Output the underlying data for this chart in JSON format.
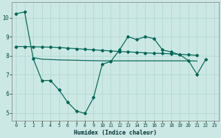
{
  "xlabel": "Humidex (Indice chaleur)",
  "background_color": "#cce8e4",
  "grid_color": "#b0d8d0",
  "line_color": "#006655",
  "x": [
    0,
    1,
    2,
    3,
    4,
    5,
    6,
    7,
    8,
    9,
    10,
    11,
    12,
    13,
    14,
    15,
    16,
    17,
    18,
    19,
    20,
    21,
    22,
    23
  ],
  "line1": [
    10.2,
    10.3,
    7.85,
    6.7,
    6.7,
    6.2,
    5.55,
    5.1,
    4.97,
    5.8,
    7.55,
    7.7,
    8.3,
    9.0,
    8.85,
    9.0,
    8.9,
    8.3,
    8.2,
    8.05,
    7.75,
    7.02,
    7.8,
    null
  ],
  "line2": [
    8.48,
    8.48,
    8.47,
    8.46,
    8.45,
    8.43,
    8.4,
    8.37,
    8.34,
    8.31,
    8.28,
    8.25,
    8.22,
    8.2,
    8.18,
    8.15,
    8.13,
    8.12,
    8.1,
    8.07,
    8.05,
    8.02,
    null,
    null
  ],
  "line3": [
    null,
    null,
    7.9,
    7.82,
    7.8,
    7.78,
    7.77,
    7.76,
    7.75,
    7.74,
    7.73,
    7.73,
    7.73,
    7.73,
    7.73,
    7.73,
    7.73,
    7.73,
    7.73,
    7.73,
    7.73,
    7.72,
    null,
    null
  ],
  "ylim": [
    4.6,
    10.8
  ],
  "xlim": [
    -0.5,
    23.5
  ],
  "yticks": [
    5,
    6,
    7,
    8,
    9,
    10
  ]
}
